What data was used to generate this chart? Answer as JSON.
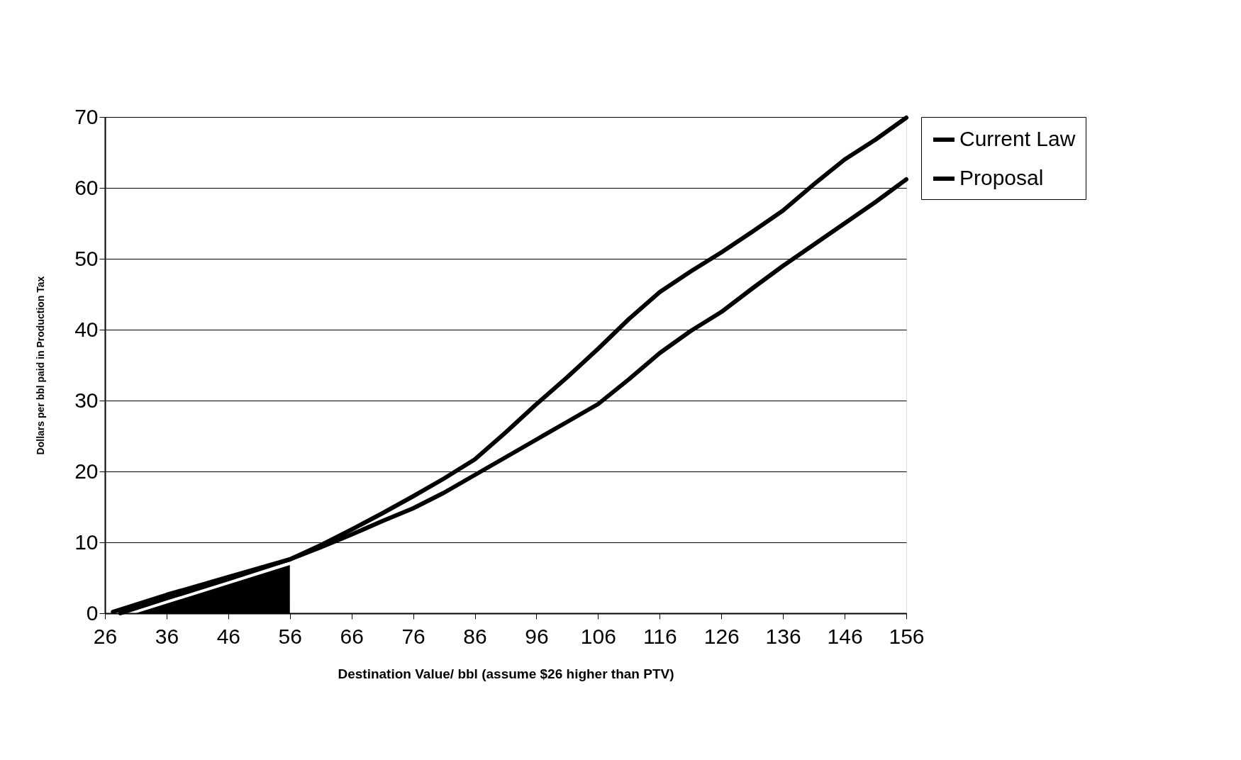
{
  "chart_data": {
    "type": "line",
    "xlabel": "Destination Value/ bbl (assume $26 higher than PTV)",
    "ylabel": "Dollars per bbl paid in Production Tax",
    "series": [
      {
        "name": "Current Law",
        "color": "#000000",
        "x": [
          27.3,
          36,
          46,
          56,
          61,
          66,
          71,
          76,
          81,
          86,
          91,
          96,
          101,
          106,
          111,
          116,
          121,
          126,
          131,
          136,
          141,
          146,
          151,
          156
        ],
        "values": [
          0.2,
          2.6,
          5.1,
          7.6,
          9.6,
          11.8,
          14.1,
          16.5,
          19,
          21.7,
          25.5,
          29.5,
          33.3,
          37.3,
          41.5,
          45.3,
          48.2,
          50.9,
          53.8,
          56.8,
          60.5,
          64,
          66.8,
          69.9
        ]
      },
      {
        "name": "Proposal",
        "color": "#000000",
        "x": [
          28.5,
          36,
          46,
          56,
          61,
          66,
          71,
          76,
          81,
          86,
          91,
          96,
          101,
          106,
          111,
          116,
          121,
          126,
          131,
          136,
          141,
          146,
          151,
          156
        ],
        "values": [
          0,
          2.1,
          4.8,
          7.6,
          9.3,
          11.1,
          13,
          14.8,
          17,
          19.5,
          22,
          24.5,
          27,
          29.5,
          33,
          36.7,
          39.8,
          42.5,
          45.8,
          49,
          52,
          55,
          58,
          61.2
        ]
      },
      {
        "type": "area",
        "color": "#000000",
        "x": [
          31,
          56
        ],
        "values": [
          0,
          6.8
        ]
      }
    ],
    "xlim": [
      26,
      156
    ],
    "xticks": [
      26,
      36,
      46,
      56,
      66,
      76,
      86,
      96,
      106,
      116,
      126,
      136,
      146,
      156
    ],
    "ylim": [
      0,
      70
    ],
    "yticks": [
      0,
      10,
      20,
      30,
      40,
      50,
      60,
      70
    ],
    "grid": "y",
    "legend": "right"
  }
}
